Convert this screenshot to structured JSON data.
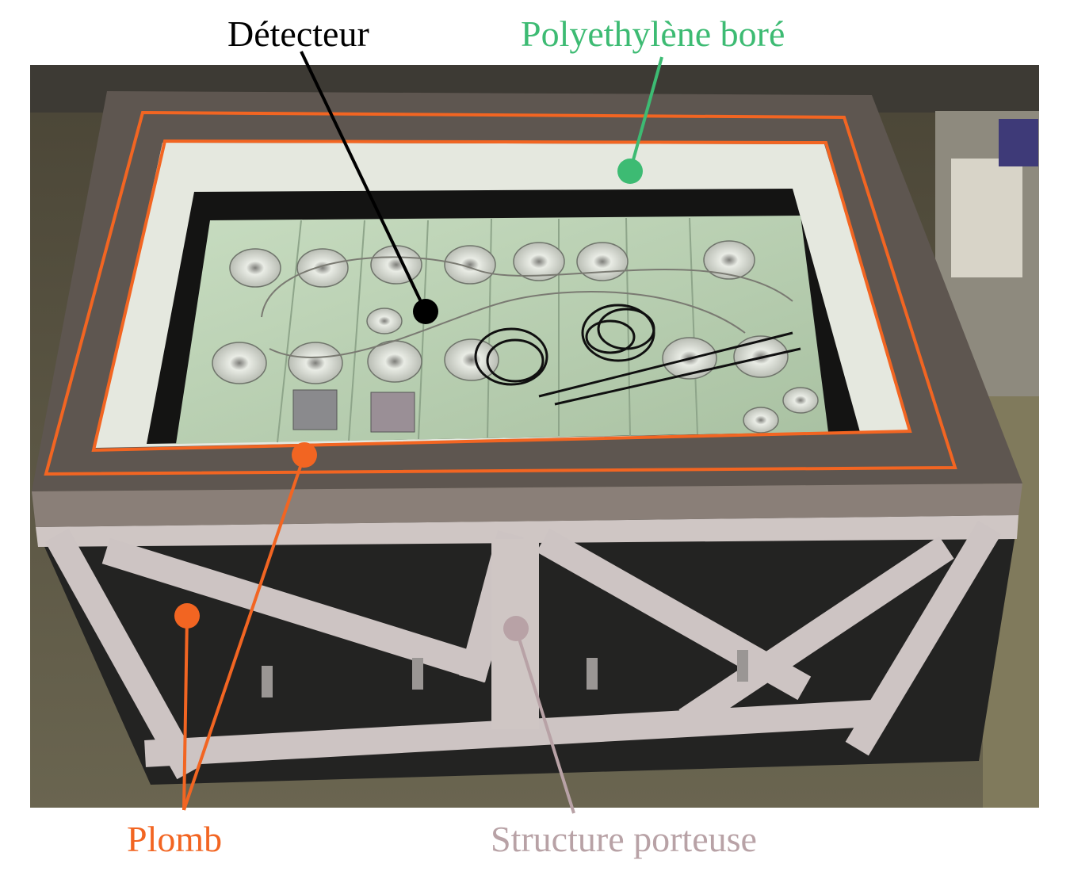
{
  "labels": {
    "detecteur": "Détecteur",
    "polyethylene": "Polyethylène boré",
    "plomb": "Plomb",
    "structure": "Structure porteuse"
  },
  "colors": {
    "detecteur": "#000000",
    "polyethylene": "#3dbb73",
    "plomb": "#f26522",
    "structure": "#b8a2a6"
  }
}
